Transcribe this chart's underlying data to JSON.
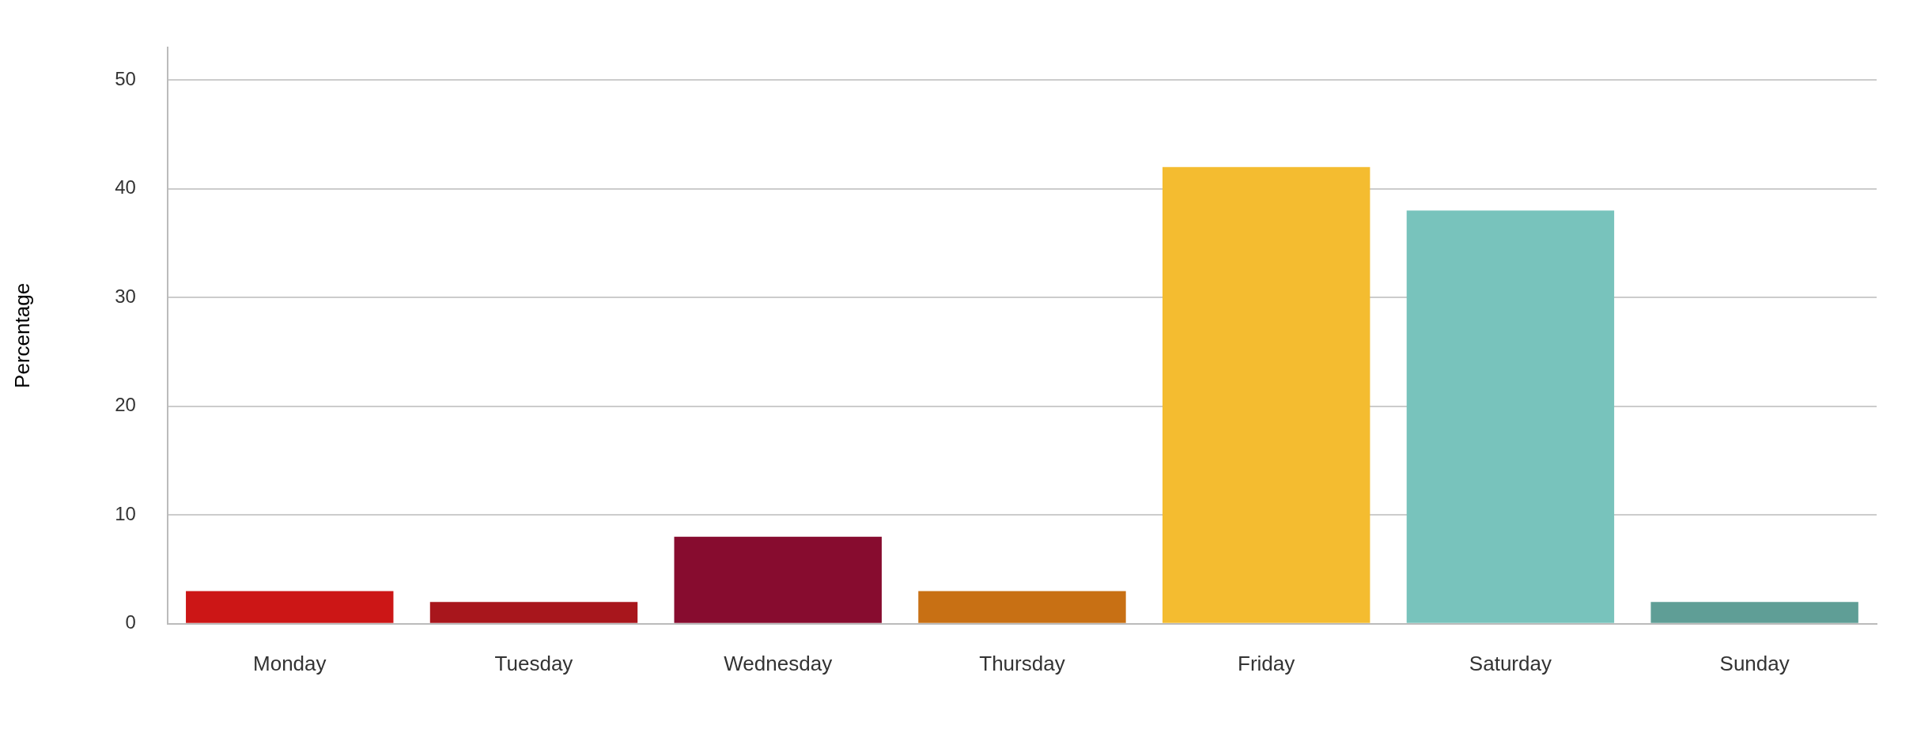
{
  "chart_data": {
    "type": "bar",
    "ylabel": "Percentage",
    "categories": [
      "Monday",
      "Tuesday",
      "Wednesday",
      "Thursday",
      "Friday",
      "Saturday",
      "Sunday"
    ],
    "values": [
      3,
      2,
      8,
      3,
      42,
      38,
      2
    ],
    "colors": [
      "#cc1616",
      "#a8161c",
      "#870c2f",
      "#c87014",
      "#f4bc30",
      "#78c3bc",
      "#5f9e96"
    ],
    "ylim": [
      0,
      53
    ],
    "yticks": [
      0,
      10,
      20,
      30,
      40,
      50
    ],
    "grid": "y",
    "legend": false
  }
}
